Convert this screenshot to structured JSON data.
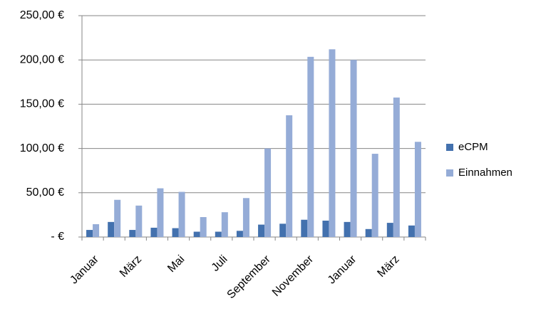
{
  "chart_data": {
    "type": "bar",
    "categories": [
      "Januar",
      null,
      "März",
      null,
      "Mai",
      null,
      "Juli",
      null,
      "September",
      null,
      "November",
      null,
      "Januar",
      null,
      "März",
      null
    ],
    "series": [
      {
        "name": "eCPM",
        "color": "#4371ae",
        "values": [
          8,
          17,
          8,
          10.5,
          10,
          6,
          6,
          7,
          14,
          15,
          19.5,
          18.5,
          17,
          9,
          16,
          13
        ]
      },
      {
        "name": "Einnahmen",
        "color": "#95acd7",
        "values": [
          14.5,
          42,
          35.5,
          55,
          51,
          22.5,
          28,
          44,
          100,
          137.5,
          203.5,
          212,
          200,
          94,
          157.5,
          107.5
        ]
      }
    ],
    "ylim": [
      0,
      250
    ],
    "yticks": [
      {
        "value": 0,
        "label": "-   €"
      },
      {
        "value": 50,
        "label": "50,00 €"
      },
      {
        "value": 100,
        "label": "100,00 €"
      },
      {
        "value": 150,
        "label": "150,00 €"
      },
      {
        "value": 200,
        "label": "200,00 €"
      },
      {
        "value": 250,
        "label": "250,00 €"
      }
    ],
    "grid": true,
    "legend": "right"
  }
}
